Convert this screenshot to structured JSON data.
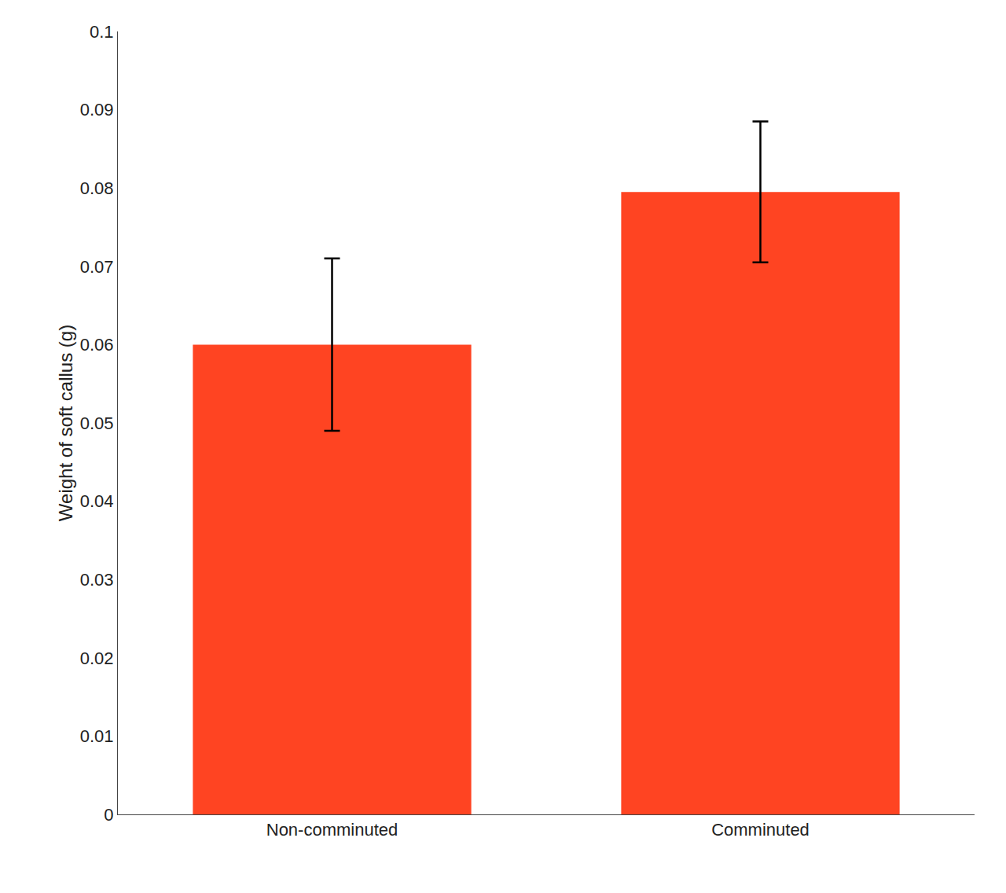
{
  "chart_data": {
    "type": "bar",
    "categories": [
      "Non-comminuted",
      "Comminuted"
    ],
    "values": [
      0.06,
      0.0795
    ],
    "errors": [
      0.011,
      0.009
    ],
    "color": "#FF4422",
    "ylabel": "Weight of soft callus (g)",
    "ylim": [
      0,
      0.1
    ],
    "yticks": [
      0,
      0.01,
      0.02,
      0.03,
      0.04,
      0.05,
      0.06,
      0.07,
      0.08,
      0.09,
      0.1
    ],
    "grid": false
  }
}
